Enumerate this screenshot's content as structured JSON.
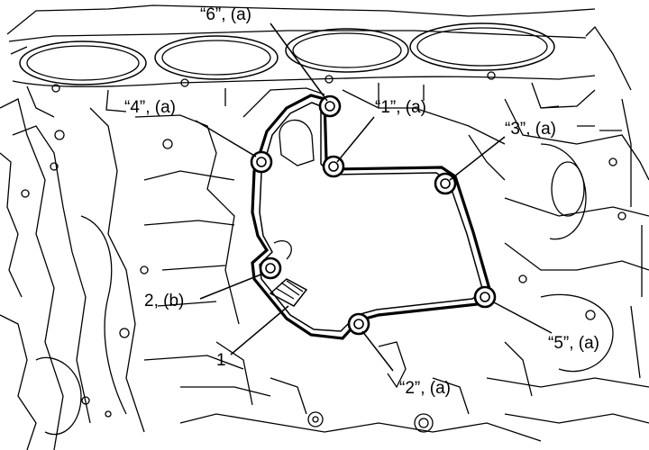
{
  "labels": {
    "bolt1": "“1”, (a)",
    "bolt2": "“2”, (a)",
    "bolt3": "“3”, (a)",
    "bolt4": "“4”, (a)",
    "bolt5": "“5”, (a)",
    "bolt6": "“6”, (a)",
    "bolt_b": "2, (b)",
    "part1": "1"
  },
  "colors": {
    "line": "#000000",
    "background": "#ffffff"
  }
}
